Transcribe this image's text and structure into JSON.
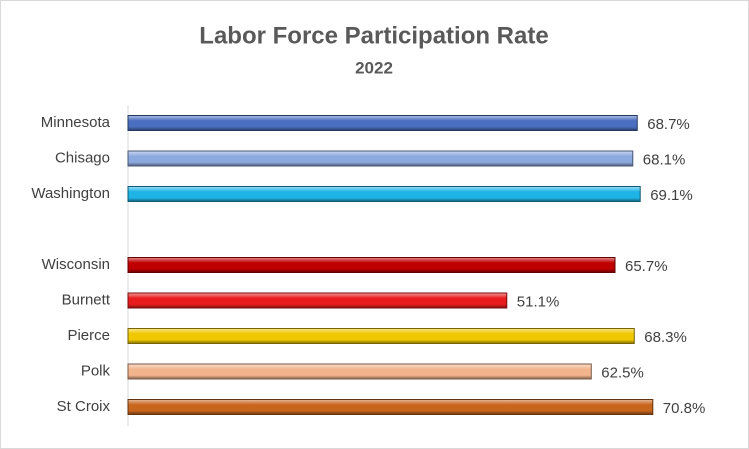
{
  "chart_data": {
    "type": "bar",
    "orientation": "horizontal",
    "title": "Labor Force Participation Rate",
    "subtitle": "2022",
    "categories": [
      "Minnesota",
      "Chisago",
      "Washington",
      null,
      "Wisconsin",
      "Burnett",
      "Pierce",
      "Polk",
      "St Croix"
    ],
    "values": [
      68.7,
      68.1,
      69.1,
      null,
      65.7,
      51.1,
      68.3,
      62.5,
      70.8
    ],
    "value_labels": [
      "68.7%",
      "68.1%",
      "69.1%",
      null,
      "65.7%",
      "51.1%",
      "68.3%",
      "62.5%",
      "70.8%"
    ],
    "colors": [
      "#4a6fc0",
      "#8ea9e0",
      "#1fb4e6",
      null,
      "#c00000",
      "#e81c1c",
      "#f0c800",
      "#f2b48c",
      "#c8661e"
    ],
    "xlim": [
      0,
      80
    ]
  }
}
